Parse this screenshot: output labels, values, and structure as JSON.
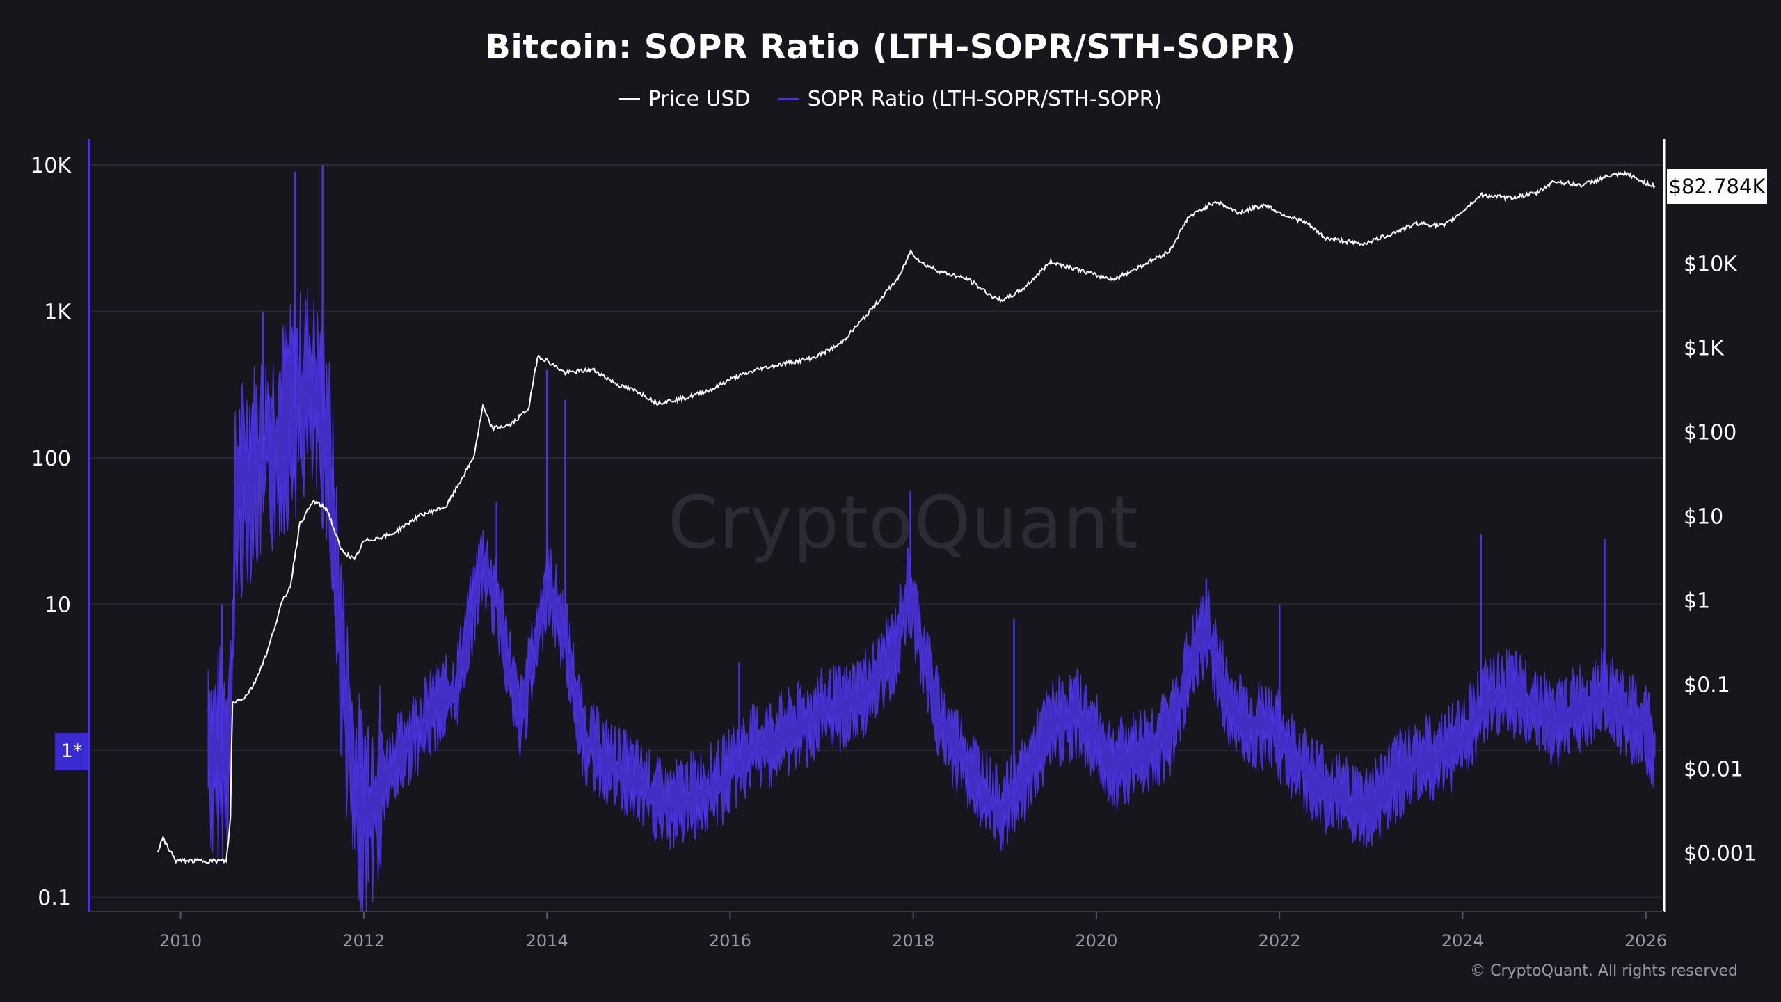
{
  "title": "Bitcoin: SOPR Ratio (LTH-SOPR/STH-SOPR)",
  "legend": [
    {
      "label": "Price USD",
      "color": "#ffffff"
    },
    {
      "label": "SOPR Ratio (LTH-SOPR/STH-SOPR)",
      "color": "#4a33e0"
    }
  ],
  "watermark": "CryptoQuant",
  "footer": "© CryptoQuant. All rights reserved",
  "current_price_label": "$82.784K",
  "one_marker_label": "1*",
  "colors": {
    "background": "#17161d",
    "grid": "#2a2930",
    "price": "#ffffff",
    "ratio": "#4a33e0",
    "left_axis": "#4a33e0",
    "right_axis": "#ffffff"
  },
  "chart_data": {
    "type": "line",
    "title": "Bitcoin: SOPR Ratio (LTH-SOPR/STH-SOPR)",
    "x_ticks": [
      "2010",
      "2012",
      "2014",
      "2016",
      "2018",
      "2020",
      "2022",
      "2024",
      "2026"
    ],
    "x_range": [
      2009.0,
      2026.2
    ],
    "left_axis": {
      "scale": "log",
      "range": [
        0.08,
        15000
      ],
      "ticks": [
        {
          "v": 10000,
          "label": "10K"
        },
        {
          "v": 1000,
          "label": "1K"
        },
        {
          "v": 100,
          "label": "100"
        },
        {
          "v": 10,
          "label": "10"
        },
        {
          "v": 0.1,
          "label": "0.1"
        }
      ]
    },
    "right_axis": {
      "scale": "log",
      "range": [
        0.0002,
        300000
      ],
      "ticks": [
        {
          "v": 10000,
          "label": "$10K"
        },
        {
          "v": 1000,
          "label": "$1K"
        },
        {
          "v": 100,
          "label": "$100"
        },
        {
          "v": 10,
          "label": "$10"
        },
        {
          "v": 1,
          "label": "$1"
        },
        {
          "v": 0.1,
          "label": "$0.1"
        },
        {
          "v": 0.01,
          "label": "$0.01"
        },
        {
          "v": 0.001,
          "label": "$0.001"
        }
      ]
    },
    "series": [
      {
        "name": "Price USD",
        "axis": "right",
        "color": "#ffffff",
        "x": [
          2009.75,
          2009.8,
          2009.95,
          2010.0,
          2010.5,
          2010.55,
          2010.56,
          2010.7,
          2010.8,
          2010.95,
          2011.1,
          2011.2,
          2011.3,
          2011.45,
          2011.6,
          2011.75,
          2011.9,
          2012.0,
          2012.3,
          2012.6,
          2012.9,
          2013.2,
          2013.3,
          2013.4,
          2013.6,
          2013.8,
          2013.9,
          2014.0,
          2014.2,
          2014.5,
          2014.8,
          2015.0,
          2015.2,
          2015.5,
          2015.8,
          2016.0,
          2016.3,
          2016.6,
          2016.9,
          2017.2,
          2017.5,
          2017.7,
          2017.85,
          2017.97,
          2018.1,
          2018.3,
          2018.6,
          2018.9,
          2019.0,
          2019.2,
          2019.5,
          2019.8,
          2020.0,
          2020.2,
          2020.5,
          2020.8,
          2021.0,
          2021.3,
          2021.55,
          2021.85,
          2022.0,
          2022.3,
          2022.5,
          2022.9,
          2023.2,
          2023.5,
          2023.8,
          2024.0,
          2024.2,
          2024.5,
          2024.8,
          2025.0,
          2025.3,
          2025.6,
          2025.8,
          2026.0,
          2026.1
        ],
        "values": [
          0.001,
          0.0015,
          0.0008,
          0.0008,
          0.0008,
          0.003,
          0.06,
          0.07,
          0.1,
          0.25,
          0.9,
          1.5,
          8,
          15,
          12,
          4,
          3,
          5,
          6,
          10,
          13,
          50,
          200,
          110,
          120,
          190,
          800,
          700,
          500,
          550,
          350,
          300,
          220,
          250,
          320,
          420,
          550,
          650,
          750,
          1100,
          2500,
          4500,
          7000,
          14000,
          10000,
          8000,
          6500,
          3800,
          3700,
          5000,
          10500,
          8500,
          7200,
          6500,
          9500,
          14000,
          35000,
          55000,
          40000,
          50000,
          40000,
          30000,
          20000,
          17000,
          22000,
          30000,
          28000,
          42000,
          65000,
          60000,
          68000,
          95000,
          85000,
          110000,
          115000,
          90000,
          82784
        ]
      },
      {
        "name": "SOPR Ratio (LTH-SOPR/STH-SOPR)",
        "axis": "left",
        "color": "#4a33e0",
        "x": [
          2010.3,
          2010.35,
          2010.45,
          2010.55,
          2010.6,
          2010.75,
          2010.9,
          2011.0,
          2011.2,
          2011.4,
          2011.6,
          2011.75,
          2011.9,
          2012.0,
          2012.2,
          2012.5,
          2012.8,
          2013.0,
          2013.3,
          2013.5,
          2013.7,
          2013.9,
          2014.0,
          2014.2,
          2014.4,
          2014.7,
          2015.0,
          2015.3,
          2015.6,
          2015.9,
          2016.2,
          2016.5,
          2016.8,
          2017.0,
          2017.3,
          2017.6,
          2017.8,
          2017.95,
          2018.1,
          2018.3,
          2018.6,
          2018.9,
          2019.0,
          2019.2,
          2019.5,
          2019.8,
          2020.0,
          2020.2,
          2020.5,
          2020.8,
          2021.0,
          2021.2,
          2021.45,
          2021.7,
          2021.9,
          2022.1,
          2022.3,
          2022.6,
          2022.9,
          2023.1,
          2023.4,
          2023.7,
          2024.0,
          2024.2,
          2024.5,
          2024.8,
          2025.0,
          2025.3,
          2025.5,
          2025.7,
          2025.9,
          2026.0,
          2026.1
        ],
        "values": [
          1.5,
          0.8,
          1.0,
          1.5,
          50,
          80,
          100,
          120,
          200,
          300,
          150,
          5,
          0.5,
          0.4,
          0.6,
          1.2,
          2.0,
          2.5,
          20,
          8,
          1.5,
          6,
          15,
          6,
          1.2,
          0.8,
          0.6,
          0.4,
          0.5,
          0.6,
          1.0,
          1.2,
          1.5,
          1.8,
          2.0,
          3.0,
          5.0,
          13,
          5,
          1.5,
          0.8,
          0.4,
          0.4,
          0.6,
          1.5,
          1.8,
          1.2,
          0.8,
          1.0,
          1.3,
          3.5,
          7,
          2.0,
          1.5,
          1.5,
          1.0,
          0.7,
          0.5,
          0.4,
          0.5,
          0.8,
          0.9,
          1.2,
          2.0,
          2.5,
          2.0,
          1.5,
          2.0,
          2.5,
          2.0,
          1.5,
          1.5,
          1.0
        ]
      }
    ]
  }
}
